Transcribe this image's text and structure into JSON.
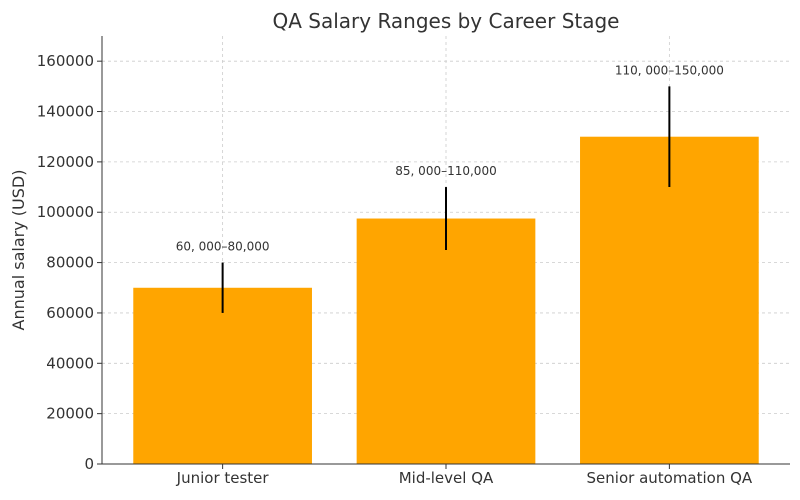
{
  "chart_data": {
    "type": "bar",
    "title": "QA Salary Ranges by Career Stage",
    "xlabel": "",
    "ylabel": "Annual salary (USD)",
    "categories": [
      "Junior tester",
      "Mid-level QA",
      "Senior automation QA"
    ],
    "values": [
      70000,
      97500,
      130000
    ],
    "ranges": [
      [
        60000,
        80000
      ],
      [
        85000,
        110000
      ],
      [
        110000,
        150000
      ]
    ],
    "data_labels": [
      "60, 000–80,000",
      "85, 000–110,000",
      "110, 000–150,000"
    ],
    "ylim": [
      0,
      170000
    ],
    "yticks": [
      0,
      20000,
      40000,
      60000,
      80000,
      100000,
      120000,
      140000,
      160000
    ],
    "grid": true,
    "colors": {
      "bar": "#FFA500",
      "errorbar": "#000000",
      "grid": "#cccccc"
    }
  }
}
